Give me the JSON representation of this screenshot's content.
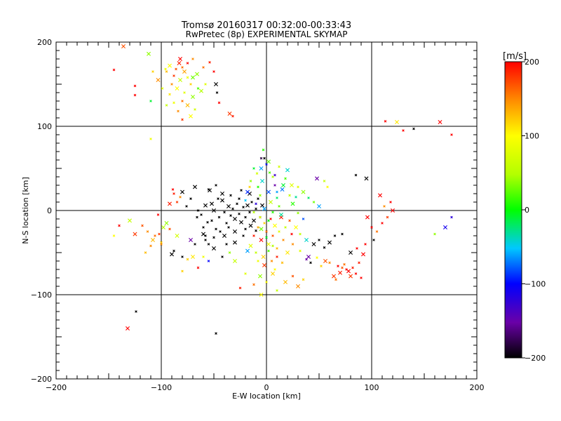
{
  "chart_data": {
    "type": "scatter",
    "title": "Tromsø 20160317 00:32:00-00:33:43",
    "subtitle": "RwPretec (8p) EXPERIMENTAL SKYMAP",
    "xlabel": "E-W location [km]",
    "ylabel": "N-S location [km]",
    "xlim": [
      -200,
      200
    ],
    "ylim": [
      -200,
      200
    ],
    "x_ticks": [
      -200,
      -100,
      0,
      100,
      200
    ],
    "y_ticks": [
      -200,
      -100,
      0,
      100,
      200
    ],
    "grid": true,
    "colorbar": {
      "label": "[m/s]",
      "min": -200,
      "max": 200,
      "ticks": [
        200,
        100,
        0,
        -100,
        -200
      ]
    },
    "points": [
      [
        -83,
        175,
        190
      ],
      [
        -80,
        170,
        160
      ],
      [
        -86,
        168,
        170
      ],
      [
        -78,
        165,
        140
      ],
      [
        -88,
        160,
        180
      ],
      [
        -75,
        158,
        90
      ],
      [
        -82,
        155,
        60
      ],
      [
        -90,
        150,
        150
      ],
      [
        -72,
        150,
        120
      ],
      [
        -85,
        145,
        100
      ],
      [
        -78,
        140,
        80
      ],
      [
        -92,
        138,
        110
      ],
      [
        -70,
        135,
        40
      ],
      [
        -80,
        130,
        160
      ],
      [
        -88,
        128,
        90
      ],
      [
        -75,
        125,
        130
      ],
      [
        -68,
        120,
        70
      ],
      [
        -84,
        118,
        150
      ],
      [
        -72,
        112,
        100
      ],
      [
        -80,
        108,
        180
      ],
      [
        -95,
        165,
        130
      ],
      [
        -66,
        162,
        40
      ],
      [
        -60,
        170,
        160
      ],
      [
        -58,
        150,
        80
      ],
      [
        -62,
        142,
        50
      ],
      [
        -54,
        176,
        190
      ],
      [
        -50,
        165,
        200
      ],
      [
        -48,
        150,
        -200
      ],
      [
        -47,
        140,
        -200
      ],
      [
        -45,
        128,
        200
      ],
      [
        -35,
        115,
        180
      ],
      [
        -32,
        112,
        190
      ],
      [
        -145,
        167,
        200
      ],
      [
        -136,
        195,
        170
      ],
      [
        -125,
        148,
        200
      ],
      [
        -125,
        137,
        200
      ],
      [
        -112,
        186,
        40
      ],
      [
        -110,
        130,
        -10
      ],
      [
        -96,
        168,
        90
      ],
      [
        -92,
        172,
        100
      ],
      [
        -110,
        85,
        90
      ],
      [
        -108,
        165,
        120
      ],
      [
        -103,
        155,
        150
      ],
      [
        -99,
        145,
        80
      ],
      [
        -95,
        125,
        60
      ],
      [
        -70,
        158,
        30
      ],
      [
        -65,
        145,
        20
      ],
      [
        -75,
        175,
        200
      ],
      [
        -82,
        180,
        200
      ],
      [
        -70,
        180,
        150
      ],
      [
        113,
        106,
        200
      ],
      [
        124,
        105,
        110
      ],
      [
        130,
        95,
        200
      ],
      [
        140,
        97,
        -200
      ],
      [
        165,
        105,
        200
      ],
      [
        176,
        90,
        200
      ],
      [
        176,
        -8,
        -120
      ],
      [
        170,
        -20,
        -110
      ],
      [
        160,
        -28,
        40
      ],
      [
        -140,
        -18,
        200
      ],
      [
        -125,
        -28,
        180
      ],
      [
        -113,
        -25,
        150
      ],
      [
        -106,
        -30,
        160
      ],
      [
        -108,
        -35,
        130
      ],
      [
        -102,
        -28,
        180
      ],
      [
        -100,
        -38,
        120
      ],
      [
        -95,
        -15,
        40
      ],
      [
        -92,
        -22,
        170
      ],
      [
        -88,
        -48,
        -200
      ],
      [
        -85,
        -30,
        70
      ],
      [
        -80,
        -55,
        -200
      ],
      [
        -75,
        -58,
        120
      ],
      [
        -70,
        -55,
        110
      ],
      [
        -68,
        -40,
        -200
      ],
      [
        -66,
        -8,
        -200
      ],
      [
        -60,
        -28,
        -200
      ],
      [
        -58,
        -35,
        -200
      ],
      [
        -55,
        -40,
        -200
      ],
      [
        -50,
        -45,
        -200
      ],
      [
        -89,
        25,
        200
      ],
      [
        -88,
        20,
        190
      ],
      [
        -92,
        8,
        190
      ],
      [
        -85,
        10,
        180
      ],
      [
        -82,
        16,
        150
      ],
      [
        -80,
        22,
        -200
      ],
      [
        -76,
        5,
        -200
      ],
      [
        -72,
        14,
        -200
      ],
      [
        -68,
        28,
        -200
      ],
      [
        -65,
        0,
        -200
      ],
      [
        -62,
        -5,
        -200
      ],
      [
        -58,
        6,
        -200
      ],
      [
        -55,
        25,
        -200
      ],
      [
        -52,
        -12,
        -200
      ],
      [
        -50,
        0,
        -200
      ],
      [
        -48,
        -22,
        -200
      ],
      [
        -45,
        -8,
        -200
      ],
      [
        -42,
        12,
        -200
      ],
      [
        -40,
        -2,
        -200
      ],
      [
        -38,
        -15,
        -200
      ],
      [
        -36,
        5,
        -200
      ],
      [
        -34,
        -6,
        -200
      ],
      [
        -32,
        2,
        -200
      ],
      [
        -30,
        -10,
        -200
      ],
      [
        -28,
        8,
        -200
      ],
      [
        -26,
        -4,
        -200
      ],
      [
        -24,
        -14,
        -200
      ],
      [
        -22,
        4,
        -200
      ],
      [
        -20,
        -8,
        -200
      ],
      [
        -18,
        6,
        -200
      ],
      [
        -16,
        -2,
        -200
      ],
      [
        -14,
        10,
        -200
      ],
      [
        -12,
        -12,
        -200
      ],
      [
        -10,
        2,
        -200
      ],
      [
        -44,
        -25,
        -200
      ],
      [
        -40,
        -30,
        -200
      ],
      [
        -36,
        -20,
        -200
      ],
      [
        -46,
        14,
        -200
      ],
      [
        -52,
        8,
        -200
      ],
      [
        -56,
        -14,
        -200
      ],
      [
        -60,
        -20,
        -200
      ],
      [
        -30,
        -25,
        -200
      ],
      [
        -26,
        14,
        -200
      ],
      [
        -20,
        -22,
        -200
      ],
      [
        -15,
        -18,
        -200
      ],
      [
        -10,
        -24,
        -200
      ],
      [
        -6,
        -8,
        -200
      ],
      [
        -4,
        6,
        -200
      ],
      [
        -8,
        14,
        -200
      ],
      [
        -34,
        18,
        -200
      ],
      [
        -42,
        20,
        -200
      ],
      [
        -48,
        30,
        -200
      ],
      [
        -38,
        -40,
        -200
      ],
      [
        -30,
        -38,
        -200
      ],
      [
        -22,
        -30,
        -200
      ],
      [
        -50,
        -32,
        -200
      ],
      [
        -54,
        24,
        -200
      ],
      [
        -58,
        -30,
        -200
      ],
      [
        -24,
        24,
        -200
      ],
      [
        -16,
        20,
        -200
      ],
      [
        -12,
        -30,
        190
      ],
      [
        -8,
        -20,
        140
      ],
      [
        -5,
        -35,
        200
      ],
      [
        -2,
        -15,
        120
      ],
      [
        0,
        -25,
        160
      ],
      [
        2,
        -40,
        90
      ],
      [
        4,
        -10,
        200
      ],
      [
        6,
        -30,
        170
      ],
      [
        8,
        -18,
        100
      ],
      [
        10,
        -45,
        130
      ],
      [
        12,
        -25,
        80
      ],
      [
        14,
        -8,
        190
      ],
      [
        16,
        -35,
        150
      ],
      [
        18,
        -20,
        60
      ],
      [
        20,
        -50,
        110
      ],
      [
        22,
        -12,
        170
      ],
      [
        24,
        -28,
        200
      ],
      [
        -3,
        -55,
        120
      ],
      [
        5,
        -60,
        150
      ],
      [
        8,
        -70,
        100
      ],
      [
        -2,
        -65,
        180
      ],
      [
        -10,
        -50,
        60
      ],
      [
        15,
        -62,
        130
      ],
      [
        -6,
        -78,
        40
      ],
      [
        0,
        -85,
        100
      ],
      [
        2,
        -48,
        20
      ],
      [
        -15,
        -42,
        80
      ],
      [
        10,
        -55,
        190
      ],
      [
        -8,
        -60,
        90
      ],
      [
        6,
        -75,
        120
      ],
      [
        -2,
        62,
        -200
      ],
      [
        0,
        55,
        -100
      ],
      [
        -5,
        50,
        -60
      ],
      [
        3,
        45,
        20
      ],
      [
        6,
        40,
        50
      ],
      [
        -4,
        35,
        -40
      ],
      [
        8,
        30,
        -150
      ],
      [
        -8,
        28,
        10
      ],
      [
        2,
        22,
        -80
      ],
      [
        -6,
        18,
        40
      ],
      [
        10,
        15,
        -20
      ],
      [
        4,
        10,
        60
      ],
      [
        -10,
        8,
        -120
      ],
      [
        12,
        5,
        30
      ],
      [
        -2,
        2,
        -60
      ],
      [
        6,
        -2,
        10
      ],
      [
        -12,
        -2,
        50
      ],
      [
        14,
        -5,
        -30
      ],
      [
        -6,
        -8,
        80
      ],
      [
        2,
        -12,
        0
      ],
      [
        15,
        25,
        -70
      ],
      [
        -15,
        35,
        40
      ],
      [
        18,
        38,
        20
      ],
      [
        20,
        48,
        -40
      ],
      [
        -12,
        50,
        -10
      ],
      [
        12,
        52,
        70
      ],
      [
        -18,
        22,
        -90
      ],
      [
        22,
        18,
        60
      ],
      [
        -20,
        12,
        -50
      ],
      [
        25,
        8,
        10
      ],
      [
        -3,
        72,
        10
      ],
      [
        -5,
        62,
        -180
      ],
      [
        2,
        58,
        30
      ],
      [
        8,
        42,
        -130
      ],
      [
        -9,
        44,
        70
      ],
      [
        16,
        30,
        -10
      ],
      [
        -16,
        28,
        120
      ],
      [
        10,
        22,
        -60
      ],
      [
        24,
        30,
        80
      ],
      [
        28,
        16,
        -30
      ],
      [
        30,
        -3,
        40
      ],
      [
        28,
        -20,
        100
      ],
      [
        32,
        -28,
        60
      ],
      [
        35,
        -10,
        -80
      ],
      [
        38,
        -35,
        -40
      ],
      [
        25,
        -40,
        150
      ],
      [
        32,
        -48,
        80
      ],
      [
        -5,
        -22,
        30
      ],
      [
        0,
        -32,
        -10
      ],
      [
        6,
        -42,
        50
      ],
      [
        40,
        -55,
        -150
      ],
      [
        42,
        -62,
        -200
      ],
      [
        38,
        -58,
        -150
      ],
      [
        45,
        -40,
        -200
      ],
      [
        50,
        -35,
        -200
      ],
      [
        55,
        -44,
        -200
      ],
      [
        60,
        -38,
        -200
      ],
      [
        65,
        -30,
        -200
      ],
      [
        72,
        -28,
        -200
      ],
      [
        80,
        -50,
        -200
      ],
      [
        88,
        -62,
        190
      ],
      [
        85,
        -75,
        200
      ],
      [
        80,
        -78,
        180
      ],
      [
        76,
        -70,
        200
      ],
      [
        72,
        -68,
        170
      ],
      [
        70,
        -74,
        190
      ],
      [
        68,
        -66,
        200
      ],
      [
        74,
        -64,
        160
      ],
      [
        78,
        -72,
        200
      ],
      [
        82,
        -68,
        190
      ],
      [
        60,
        -62,
        150
      ],
      [
        56,
        -60,
        170
      ],
      [
        52,
        -66,
        120
      ],
      [
        48,
        -56,
        100
      ],
      [
        64,
        -78,
        180
      ],
      [
        66,
        -82,
        160
      ],
      [
        90,
        -80,
        200
      ],
      [
        92,
        -52,
        200
      ],
      [
        86,
        -45,
        200
      ],
      [
        94,
        -40,
        200
      ],
      [
        95,
        38,
        -200
      ],
      [
        85,
        42,
        -200
      ],
      [
        55,
        35,
        60
      ],
      [
        48,
        38,
        -150
      ],
      [
        58,
        28,
        100
      ],
      [
        30,
        28,
        80
      ],
      [
        35,
        22,
        40
      ],
      [
        40,
        15,
        -20
      ],
      [
        45,
        10,
        30
      ],
      [
        50,
        5,
        -60
      ],
      [
        102,
        -35,
        -200
      ],
      [
        100,
        -20,
        200
      ],
      [
        96,
        -8,
        200
      ],
      [
        110,
        -15,
        200
      ],
      [
        115,
        -8,
        180
      ],
      [
        120,
        0,
        200
      ],
      [
        118,
        10,
        200
      ],
      [
        112,
        5,
        150
      ],
      [
        108,
        18,
        200
      ],
      [
        105,
        -25,
        160
      ],
      [
        -124,
        -120,
        -200
      ],
      [
        -132,
        -140,
        200
      ],
      [
        -48,
        -146,
        -200
      ],
      [
        -145,
        -30,
        100
      ],
      [
        -130,
        -12,
        60
      ],
      [
        -118,
        -18,
        170
      ],
      [
        -103,
        -5,
        200
      ],
      [
        -98,
        -20,
        50
      ],
      [
        -110,
        -42,
        150
      ],
      [
        -115,
        -50,
        130
      ],
      [
        -5,
        -100,
        100
      ],
      [
        10,
        -95,
        60
      ],
      [
        -12,
        -88,
        160
      ],
      [
        18,
        -85,
        130
      ],
      [
        -20,
        -75,
        80
      ],
      [
        25,
        -78,
        170
      ],
      [
        30,
        -90,
        150
      ],
      [
        -25,
        -92,
        190
      ],
      [
        35,
        -82,
        120
      ],
      [
        -30,
        -60,
        60
      ],
      [
        -65,
        -68,
        200
      ],
      [
        -80,
        -72,
        120
      ],
      [
        -90,
        -52,
        -200
      ],
      [
        -100,
        -40,
        150
      ],
      [
        -60,
        -55,
        90
      ],
      [
        -72,
        -35,
        -150
      ],
      [
        -55,
        -60,
        -100
      ],
      [
        -42,
        -55,
        -200
      ],
      [
        -18,
        -48,
        -60
      ],
      [
        -35,
        -50,
        40
      ]
    ]
  }
}
